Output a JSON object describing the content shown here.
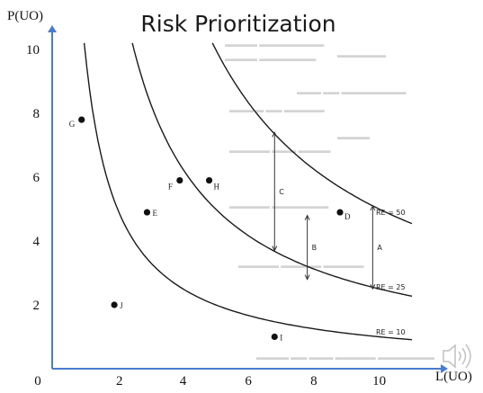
{
  "slide": {
    "title": "Risk Prioritization",
    "speaker_icon": "speaker-volume-icon"
  },
  "colors": {
    "axis": "#4a7bd0",
    "curve": "#1a1a1a",
    "point": "#111111",
    "faint_text": "#cfcfcf"
  },
  "chart_data": {
    "type": "scatter",
    "title": "Risk Prioritization",
    "xlabel": "L(UO)",
    "ylabel": "P(UO)",
    "xlim": [
      0,
      11
    ],
    "ylim": [
      0,
      10
    ],
    "x_ticks": [
      0,
      2,
      4,
      6,
      8,
      10
    ],
    "y_ticks": [
      2,
      4,
      6,
      8,
      10
    ],
    "grid": false,
    "points": [
      {
        "label": "G",
        "x": 0.9,
        "y": 7.8
      },
      {
        "label": "F",
        "x": 3.9,
        "y": 5.9
      },
      {
        "label": "H",
        "x": 4.8,
        "y": 5.9
      },
      {
        "label": "E",
        "x": 2.9,
        "y": 4.9
      },
      {
        "label": "D",
        "x": 8.8,
        "y": 4.9
      },
      {
        "label": "J",
        "x": 1.9,
        "y": 2.0
      },
      {
        "label": "I",
        "x": 6.8,
        "y": 1.0
      }
    ],
    "iso_risk_curves": [
      {
        "label": "RE = 50",
        "value": 50
      },
      {
        "label": "RE = 25",
        "value": 25
      },
      {
        "label": "RE = 10",
        "value": 10
      }
    ],
    "arrows": [
      {
        "label": "C",
        "x": 6.8,
        "y_from": 7.4,
        "y_to": 3.7
      },
      {
        "label": "B",
        "x": 7.8,
        "y_from": 4.8,
        "y_to": 2.8
      },
      {
        "label": "A",
        "x": 9.8,
        "y_from": 5.1,
        "y_to": 2.5
      }
    ]
  }
}
